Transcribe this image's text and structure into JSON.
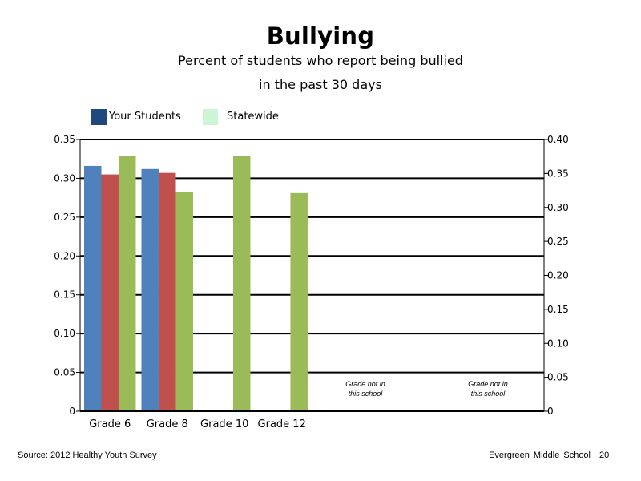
{
  "title": "Bullying",
  "subtitle_line1": "Percent of students who report being bullied",
  "subtitle_line2": "in the past 30 days",
  "legend": [
    {
      "label": "Your Students",
      "color": "#1f497d"
    },
    {
      "label": "Statewide",
      "color": "#ccf5d6"
    }
  ],
  "footer": {
    "source": "Source: 2012 Healthy Youth Survey",
    "school": "Evergreen Middle School",
    "page": "20"
  },
  "colors": {
    "blue": "#4f81bd",
    "red": "#c0504d",
    "green": "#9bbb59",
    "axis": "#000000"
  },
  "chart_data": {
    "type": "bar",
    "categories": [
      "Grade 6",
      "Grade 8",
      "Grade 10",
      "Grade 12",
      "",
      ""
    ],
    "series": [
      {
        "values": [
          0.316,
          0.312,
          null,
          null,
          null,
          null
        ],
        "color": "#4f81bd"
      },
      {
        "values": [
          0.305,
          0.307,
          null,
          null,
          null,
          null
        ],
        "color": "#c0504d"
      },
      {
        "values": [
          0.329,
          0.282,
          0.329,
          0.281,
          null,
          null
        ],
        "color": "#9bbb59"
      }
    ],
    "annotations": [
      {
        "category_index": 4,
        "text": "Grade not in this school"
      },
      {
        "category_index": 5,
        "text": "Grade not in this school"
      }
    ],
    "left_axis": {
      "ylim": [
        0,
        0.35
      ],
      "ticks": [
        "0",
        "0.05",
        "0.10",
        "0.15",
        "0.20",
        "0.25",
        "0.30",
        "0.35"
      ]
    },
    "right_axis": {
      "ylim": [
        0,
        0.4
      ],
      "ticks": [
        "0",
        "0.05",
        "0.10",
        "0.15",
        "0.20",
        "0.25",
        "0.30",
        "0.35",
        "0.40"
      ]
    },
    "grid": true
  }
}
